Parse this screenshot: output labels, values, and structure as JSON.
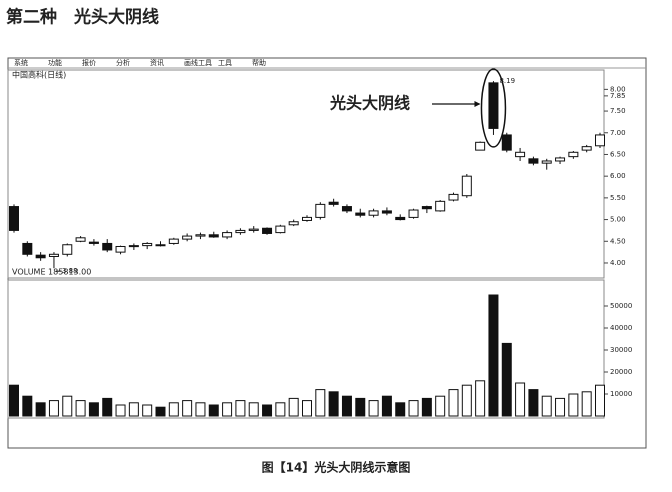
{
  "header": {
    "title": "第二种　光头大阴线"
  },
  "toolbar": [
    "系统",
    "功能",
    "报价",
    "分析",
    "资讯",
    "画线工具",
    "工具",
    "帮助"
  ],
  "chart_data": {
    "type": "candlestick",
    "title": "中国高科(日线)",
    "annotation": "光头大阴线",
    "max_marker": 8.19,
    "min_marker": 3.88,
    "open": [
      5.3,
      4.45,
      4.18,
      4.15,
      4.2,
      4.5,
      4.48,
      4.45,
      4.25,
      4.38,
      4.4,
      4.42,
      4.45,
      4.55,
      4.62,
      4.65,
      4.6,
      4.7,
      4.75,
      4.8,
      4.7,
      4.88,
      4.98,
      5.05,
      5.4,
      5.3,
      5.15,
      5.1,
      5.2,
      5.05,
      5.05,
      5.3,
      5.2,
      5.45,
      5.55,
      6.6,
      8.15,
      6.95,
      6.45,
      6.4,
      6.3,
      6.35,
      6.45,
      6.6,
      6.7
    ],
    "high": [
      5.35,
      4.5,
      4.25,
      4.25,
      4.45,
      4.62,
      4.55,
      4.55,
      4.4,
      4.45,
      4.48,
      4.5,
      4.58,
      4.68,
      4.7,
      4.72,
      4.75,
      4.8,
      4.85,
      4.82,
      4.88,
      5.0,
      5.1,
      5.4,
      5.48,
      5.35,
      5.25,
      5.25,
      5.28,
      5.12,
      5.25,
      5.32,
      5.45,
      5.62,
      6.05,
      6.8,
      8.19,
      7.0,
      6.65,
      6.45,
      6.4,
      6.45,
      6.58,
      6.72,
      7.0
    ],
    "low": [
      4.7,
      4.15,
      4.05,
      3.88,
      4.15,
      4.48,
      4.4,
      4.25,
      4.2,
      4.3,
      4.32,
      4.38,
      4.42,
      4.5,
      4.55,
      4.58,
      4.55,
      4.65,
      4.7,
      4.65,
      4.68,
      4.85,
      4.95,
      5.0,
      5.3,
      5.15,
      5.05,
      5.05,
      5.1,
      4.98,
      5.02,
      5.15,
      5.18,
      5.42,
      5.5,
      6.6,
      6.95,
      6.55,
      6.35,
      6.25,
      6.15,
      6.28,
      6.4,
      6.55,
      6.65
    ],
    "close": [
      4.75,
      4.2,
      4.12,
      4.2,
      4.42,
      4.58,
      4.45,
      4.3,
      4.38,
      4.4,
      4.45,
      4.4,
      4.55,
      4.62,
      4.65,
      4.6,
      4.7,
      4.75,
      4.78,
      4.68,
      4.85,
      4.95,
      5.05,
      5.35,
      5.35,
      5.2,
      5.1,
      5.2,
      5.15,
      5.0,
      5.22,
      5.25,
      5.42,
      5.58,
      6.0,
      6.78,
      7.1,
      6.6,
      6.55,
      6.3,
      6.35,
      6.42,
      6.55,
      6.68,
      6.95
    ],
    "ylim": [
      3.7,
      8.4
    ],
    "yticks": [
      {
        "value": 4,
        "label": "4.00"
      },
      {
        "value": 4.5,
        "label": "4.50"
      },
      {
        "value": 5,
        "label": "5.00"
      },
      {
        "value": 5.5,
        "label": "5.50"
      },
      {
        "value": 6,
        "label": "6.00"
      },
      {
        "value": 6.5,
        "label": "6.50"
      },
      {
        "value": 7,
        "label": "7.00"
      },
      {
        "value": 7.5,
        "label": "7.50"
      },
      {
        "value": 7.85,
        "label": "7.85"
      },
      {
        "value": 8,
        "label": "8.00"
      }
    ],
    "volume": {
      "indicator": "VOLUME 185813.00",
      "values": [
        14000,
        9000,
        6000,
        7000,
        9000,
        7000,
        6000,
        8000,
        5000,
        6000,
        5000,
        4000,
        6000,
        7000,
        6000,
        5000,
        6000,
        7000,
        6000,
        5000,
        6000,
        8000,
        7000,
        12000,
        11000,
        9000,
        8000,
        7000,
        9000,
        6000,
        7000,
        8000,
        9000,
        12000,
        14000,
        16000,
        55000,
        33000,
        15000,
        12000,
        9000,
        8000,
        10000,
        11000,
        14000
      ],
      "ylim": [
        0,
        60000
      ],
      "yticks": [
        10000,
        20000,
        30000,
        40000,
        50000
      ]
    }
  },
  "caption": "图【14】光头大阴线示意图"
}
